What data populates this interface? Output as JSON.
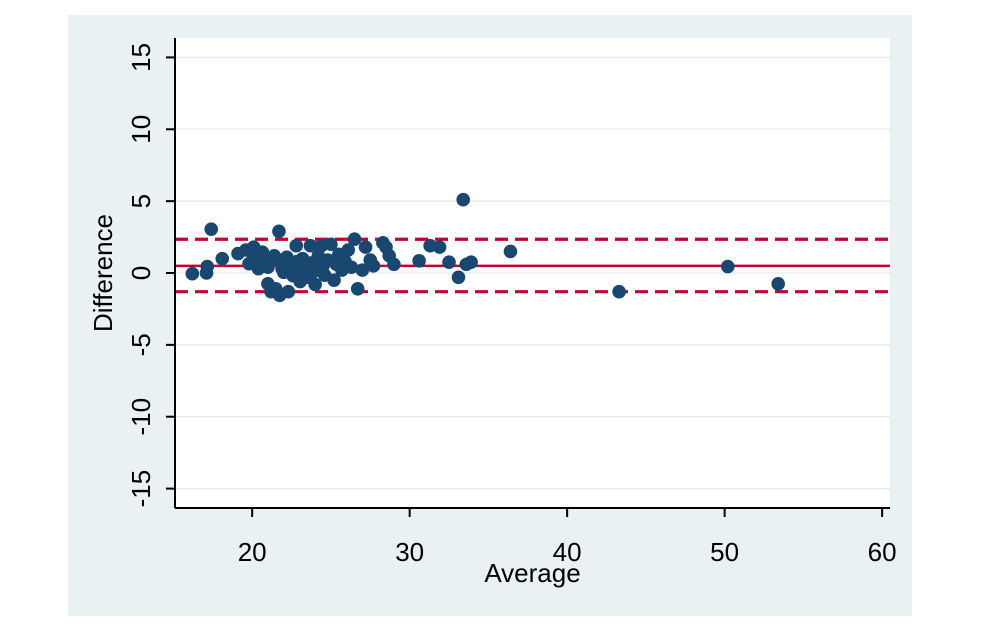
{
  "chart_data": {
    "type": "scatter",
    "title": "",
    "xlabel": "Average",
    "ylabel": "Difference",
    "xlim": [
      15.1,
      60.5
    ],
    "ylim": [
      -16.35,
      16.35
    ],
    "xticks": [
      20,
      30,
      40,
      50,
      60
    ],
    "yticks": [
      15,
      10,
      5,
      0,
      -5,
      -10,
      -15
    ],
    "grid": true,
    "legend": "none",
    "reference_lines": {
      "mean": 0.5,
      "upper_loa": 2.35,
      "lower_loa": -1.3,
      "mean_style": "solid",
      "loa_style": "dashed"
    },
    "points": [
      [
        16.2,
        -0.05
      ],
      [
        17.15,
        0.45
      ],
      [
        17.1,
        0.0
      ],
      [
        17.4,
        3.05
      ],
      [
        18.1,
        1.0
      ],
      [
        19.1,
        1.35
      ],
      [
        19.6,
        1.6
      ],
      [
        19.8,
        0.65
      ],
      [
        20.1,
        1.8
      ],
      [
        20.1,
        1.1
      ],
      [
        20.4,
        0.3
      ],
      [
        20.65,
        1.45
      ],
      [
        20.75,
        0.75
      ],
      [
        21.0,
        0.4
      ],
      [
        21.0,
        -0.75
      ],
      [
        21.2,
        -1.3
      ],
      [
        21.4,
        1.2
      ],
      [
        21.5,
        -1.1
      ],
      [
        21.7,
        2.9
      ],
      [
        21.75,
        -1.55
      ],
      [
        21.7,
        0.9
      ],
      [
        21.9,
        0.3
      ],
      [
        22.0,
        0.05
      ],
      [
        22.2,
        1.1
      ],
      [
        22.3,
        -1.3
      ],
      [
        22.35,
        0.6
      ],
      [
        22.5,
        0.4
      ],
      [
        22.6,
        -0.2
      ],
      [
        22.8,
        1.9
      ],
      [
        22.85,
        0.8
      ],
      [
        23.0,
        0.2
      ],
      [
        23.05,
        -0.6
      ],
      [
        23.2,
        1.0
      ],
      [
        23.3,
        0.5
      ],
      [
        23.5,
        -0.3
      ],
      [
        23.7,
        1.9
      ],
      [
        23.75,
        0.7
      ],
      [
        23.9,
        0.1
      ],
      [
        24.0,
        -0.8
      ],
      [
        24.2,
        1.2
      ],
      [
        24.4,
        1.9
      ],
      [
        24.5,
        0.5
      ],
      [
        24.6,
        -0.15
      ],
      [
        24.8,
        0.9
      ],
      [
        25.0,
        2.0
      ],
      [
        25.2,
        -0.5
      ],
      [
        25.35,
        0.6
      ],
      [
        25.5,
        1.3
      ],
      [
        25.7,
        0.2
      ],
      [
        25.9,
        0.8
      ],
      [
        26.1,
        1.6
      ],
      [
        26.3,
        0.4
      ],
      [
        26.5,
        2.35
      ],
      [
        26.7,
        -1.1
      ],
      [
        27.0,
        0.2
      ],
      [
        27.2,
        1.8
      ],
      [
        27.5,
        0.9
      ],
      [
        27.7,
        0.5
      ],
      [
        28.3,
        2.1
      ],
      [
        28.5,
        1.8
      ],
      [
        28.7,
        1.2
      ],
      [
        29.0,
        0.6
      ],
      [
        30.6,
        0.85
      ],
      [
        31.3,
        1.9
      ],
      [
        31.9,
        1.8
      ],
      [
        32.5,
        0.75
      ],
      [
        33.1,
        -0.3
      ],
      [
        33.4,
        5.1
      ],
      [
        33.6,
        0.6
      ],
      [
        33.9,
        0.75
      ],
      [
        36.4,
        1.5
      ],
      [
        43.3,
        -1.3
      ],
      [
        50.2,
        0.45
      ],
      [
        53.4,
        -0.75
      ]
    ]
  },
  "colors": {
    "figure_background": "#e9f1f2",
    "plot_background": "#ffffff",
    "gridline": "#dfeaec",
    "point": "#1a476f",
    "mean_line": "#c10534",
    "loa_line": "#c10534",
    "axis": "#000000",
    "page_background": "#ffffff"
  }
}
